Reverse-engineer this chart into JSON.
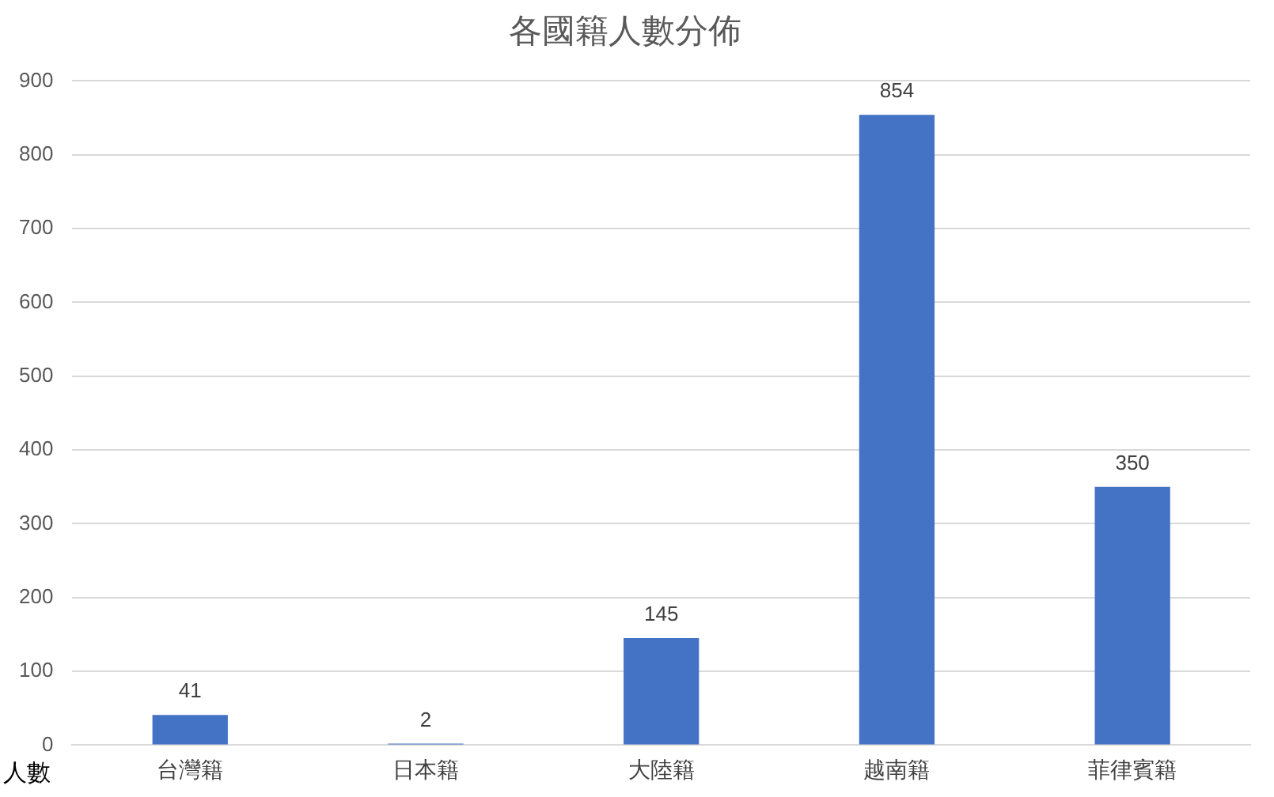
{
  "chart_data": {
    "type": "bar",
    "title": "各國籍人數分佈",
    "ylabel": "人數",
    "categories": [
      "台灣籍",
      "日本籍",
      "大陸籍",
      "越南籍",
      "菲律賓籍"
    ],
    "values": [
      41,
      2,
      145,
      854,
      350
    ],
    "color": "#4472c4",
    "ylim": [
      0,
      900
    ],
    "yticks": [
      0,
      100,
      200,
      300,
      400,
      500,
      600,
      700,
      800,
      900
    ],
    "grid": "y",
    "data_labels": true,
    "legend": false
  }
}
